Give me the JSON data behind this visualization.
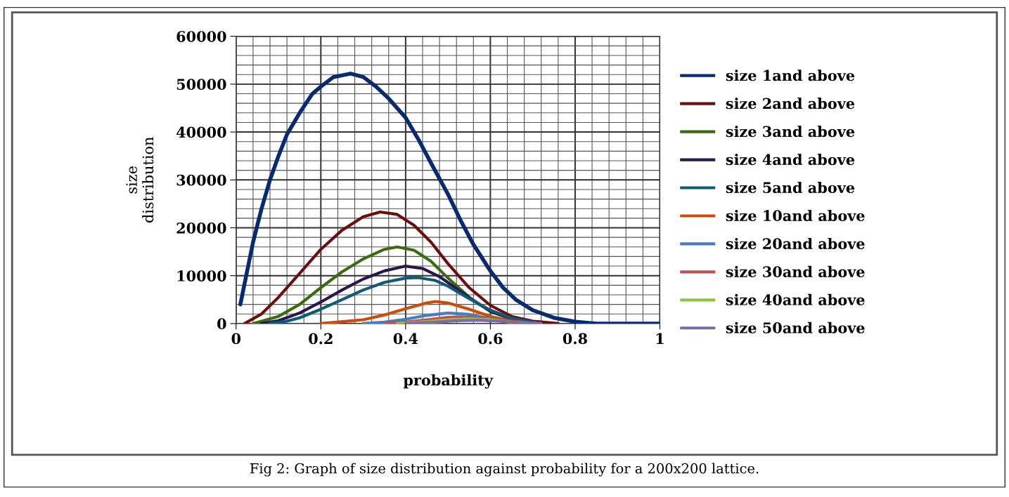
{
  "chart_data": {
    "type": "line",
    "xlabel": "probability",
    "ylabel": "size\ndistribution",
    "annotations": [
      "Fig 2: Graph of size distribution against probability for a 200x200 lattice."
    ],
    "xlim": [
      0,
      1
    ],
    "ylim": [
      0,
      60000
    ],
    "xticks": [
      0,
      0.2,
      0.4,
      0.6,
      0.8,
      1
    ],
    "yticks": [
      0,
      10000,
      20000,
      30000,
      40000,
      50000,
      60000
    ],
    "grid": true,
    "legend": "right",
    "marker": "none",
    "line_style": "solid",
    "series": [
      {
        "name": "size 1and above",
        "color": "#0a2a6e",
        "x": [
          0.01,
          0.04,
          0.06,
          0.08,
          0.1,
          0.12,
          0.15,
          0.18,
          0.2,
          0.23,
          0.27,
          0.3,
          0.33,
          0.36,
          0.4,
          0.43,
          0.46,
          0.5,
          0.53,
          0.56,
          0.6,
          0.63,
          0.66,
          0.7,
          0.75,
          0.8,
          0.85,
          0.9,
          0.95,
          1.0
        ],
        "values": [
          4000,
          17000,
          24000,
          30000,
          35000,
          39500,
          44000,
          48000,
          49500,
          51500,
          52200,
          51500,
          49500,
          47000,
          43000,
          38500,
          33500,
          27000,
          21500,
          16500,
          11000,
          7500,
          5000,
          2800,
          1200,
          400,
          0,
          0,
          0,
          0
        ]
      },
      {
        "name": "size 2and above",
        "color": "#6b0e0e",
        "x": [
          0.02,
          0.06,
          0.1,
          0.15,
          0.2,
          0.25,
          0.3,
          0.34,
          0.38,
          0.42,
          0.46,
          0.5,
          0.55,
          0.6,
          0.65,
          0.7,
          0.76
        ],
        "values": [
          0,
          2000,
          5500,
          10500,
          15500,
          19500,
          22300,
          23300,
          22800,
          20500,
          17000,
          12500,
          7500,
          3800,
          1500,
          500,
          0
        ]
      },
      {
        "name": "size 3and above",
        "color": "#3a6b10",
        "x": [
          0.04,
          0.1,
          0.15,
          0.2,
          0.25,
          0.3,
          0.35,
          0.38,
          0.42,
          0.46,
          0.5,
          0.55,
          0.6,
          0.65,
          0.72
        ],
        "values": [
          0,
          1500,
          4000,
          7500,
          10800,
          13500,
          15500,
          16000,
          15300,
          13000,
          9500,
          5500,
          2500,
          900,
          0
        ]
      },
      {
        "name": "size 4and above",
        "color": "#2a1550",
        "x": [
          0.06,
          0.1,
          0.15,
          0.2,
          0.25,
          0.3,
          0.35,
          0.4,
          0.44,
          0.48,
          0.52,
          0.56,
          0.6,
          0.65,
          0.72
        ],
        "values": [
          0,
          600,
          2200,
          4500,
          7000,
          9300,
          11000,
          12000,
          11500,
          9800,
          7300,
          4800,
          2600,
          1000,
          0
        ]
      },
      {
        "name": "size 5and above",
        "color": "#0e5a7a",
        "x": [
          0.08,
          0.12,
          0.15,
          0.2,
          0.25,
          0.3,
          0.35,
          0.4,
          0.43,
          0.47,
          0.5,
          0.55,
          0.6,
          0.65,
          0.72
        ],
        "values": [
          0,
          500,
          1200,
          3000,
          5000,
          7000,
          8600,
          9500,
          9600,
          9000,
          7800,
          5200,
          2800,
          1100,
          0
        ]
      },
      {
        "name": "size 10and above",
        "color": "#d04a0a",
        "x": [
          0.2,
          0.3,
          0.35,
          0.4,
          0.45,
          0.47,
          0.5,
          0.55,
          0.6,
          0.65,
          0.71
        ],
        "values": [
          0,
          800,
          1800,
          3100,
          4300,
          4600,
          4300,
          3000,
          1500,
          500,
          0
        ]
      },
      {
        "name": "size 20and above",
        "color": "#4a7abf",
        "x": [
          0.3,
          0.35,
          0.4,
          0.45,
          0.5,
          0.55,
          0.6,
          0.65,
          0.7
        ],
        "values": [
          0,
          300,
          900,
          1700,
          2200,
          1900,
          1000,
          300,
          0
        ]
      },
      {
        "name": "size 30and above",
        "color": "#c0504d",
        "x": [
          0.35,
          0.4,
          0.45,
          0.5,
          0.53,
          0.57,
          0.62,
          0.67,
          0.71
        ],
        "values": [
          0,
          300,
          800,
          1300,
          1400,
          1200,
          600,
          200,
          0
        ]
      },
      {
        "name": "size 40and above",
        "color": "#8cc63f",
        "x": [
          0.38,
          0.45,
          0.5,
          0.55,
          0.6,
          0.65,
          0.7
        ],
        "values": [
          0,
          400,
          800,
          1000,
          800,
          300,
          0
        ]
      },
      {
        "name": "size 50and above",
        "color": "#7f6aa8",
        "x": [
          0.4,
          0.47,
          0.52,
          0.57,
          0.62,
          0.67,
          0.72
        ],
        "values": [
          0,
          300,
          600,
          700,
          500,
          200,
          0
        ]
      }
    ]
  }
}
